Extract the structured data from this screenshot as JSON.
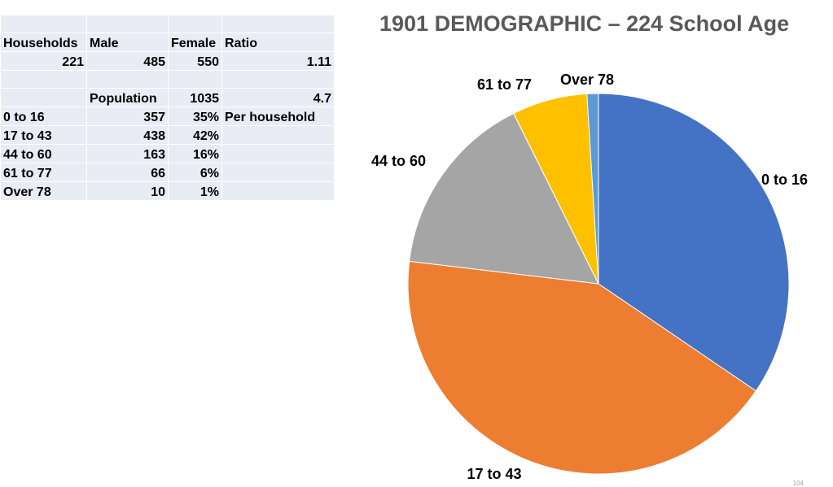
{
  "table": {
    "rows": [
      [
        "",
        "",
        "",
        ""
      ],
      [
        "Households",
        "Male",
        "Female",
        "Ratio"
      ],
      [
        "221",
        "485",
        "550",
        "1.11"
      ],
      [
        "",
        "",
        "",
        ""
      ],
      [
        "",
        "Population",
        "1035",
        "4.7"
      ],
      [
        "0 to 16",
        "357",
        "35%",
        "Per household"
      ],
      [
        "17 to 43",
        "438",
        "42%",
        ""
      ],
      [
        "44 to 60",
        "163",
        "16%",
        ""
      ],
      [
        "61 to 77",
        "66",
        "6%",
        ""
      ],
      [
        "Over 78",
        "10",
        "1%",
        ""
      ]
    ]
  },
  "chart_data": {
    "type": "pie",
    "title": "1901 DEMOGRAPHIC – 224 School Age",
    "categories": [
      "0 to 16",
      "17 to 43",
      "44 to 60",
      "61 to 77",
      "Over 78"
    ],
    "values": [
      357,
      438,
      163,
      66,
      10
    ],
    "colors": [
      "#4472c4",
      "#ed7d31",
      "#a5a5a5",
      "#ffc000",
      "#5b9bd5"
    ],
    "start_angle_deg": 0,
    "direction": "clockwise"
  },
  "page_number": "104"
}
